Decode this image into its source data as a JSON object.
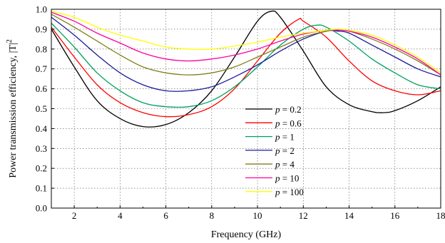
{
  "chart_data": {
    "type": "line",
    "title": "",
    "xlabel": "Frequency  (GHz)",
    "ylabel": "Power transmission efficiency, |T|",
    "ylabel_superscript": "2",
    "xlim": [
      1,
      18
    ],
    "ylim": [
      0.0,
      1.0
    ],
    "x_ticks": [
      2,
      4,
      6,
      8,
      10,
      12,
      14,
      16,
      18
    ],
    "y_ticks": [
      0.0,
      0.1,
      0.2,
      0.3,
      0.4,
      0.5,
      0.6,
      0.7,
      0.8,
      0.9,
      1.0
    ],
    "x_tick_labels": [
      "2",
      "4",
      "6",
      "8",
      "10",
      "12",
      "14",
      "16",
      "18"
    ],
    "y_tick_labels": [
      "0.0",
      "0.1",
      "0.2",
      "0.3",
      "0.4",
      "0.5",
      "0.6",
      "0.7",
      "0.8",
      "0.9",
      "1.0"
    ],
    "grid": true,
    "legend_position": "center-right",
    "legend_prefix": "p",
    "series": [
      {
        "name": "= 0.2",
        "color": "#000000",
        "x": [
          1,
          2,
          3,
          4,
          5,
          6,
          7,
          8,
          9,
          10,
          10.6,
          11,
          12,
          13,
          14,
          15,
          15.5,
          16,
          17,
          18
        ],
        "y": [
          0.9,
          0.71,
          0.54,
          0.45,
          0.41,
          0.42,
          0.48,
          0.59,
          0.76,
          0.94,
          0.99,
          0.96,
          0.79,
          0.61,
          0.52,
          0.485,
          0.48,
          0.49,
          0.54,
          0.61
        ]
      },
      {
        "name": "= 0.6",
        "color": "#ff0000",
        "x": [
          1,
          2,
          3,
          4,
          5,
          6,
          7,
          8,
          9,
          10,
          11,
          11.8,
          12,
          13,
          14,
          15,
          16,
          17,
          18
        ],
        "y": [
          0.91,
          0.76,
          0.62,
          0.53,
          0.48,
          0.46,
          0.47,
          0.51,
          0.6,
          0.74,
          0.88,
          0.95,
          0.94,
          0.86,
          0.74,
          0.64,
          0.59,
          0.57,
          0.59
        ]
      },
      {
        "name": "= 1",
        "color": "#00a060",
        "x": [
          1,
          2,
          3,
          4,
          5,
          6,
          7,
          8,
          9,
          10,
          11,
          12,
          12.6,
          13,
          14,
          15,
          16,
          17,
          18
        ],
        "y": [
          0.93,
          0.81,
          0.68,
          0.59,
          0.53,
          0.51,
          0.51,
          0.54,
          0.61,
          0.71,
          0.82,
          0.9,
          0.92,
          0.91,
          0.84,
          0.75,
          0.68,
          0.62,
          0.6
        ]
      },
      {
        "name": "= 2",
        "color": "#1c1c9c",
        "x": [
          1,
          2,
          3,
          4,
          5,
          6,
          7,
          8,
          9,
          10,
          11,
          12,
          13,
          13.5,
          14,
          15,
          16,
          17,
          18
        ],
        "y": [
          0.96,
          0.87,
          0.77,
          0.68,
          0.62,
          0.59,
          0.59,
          0.61,
          0.66,
          0.72,
          0.79,
          0.85,
          0.89,
          0.89,
          0.88,
          0.82,
          0.76,
          0.7,
          0.66
        ]
      },
      {
        "name": "= 4",
        "color": "#7f7f1a",
        "x": [
          1,
          2,
          3,
          4,
          5,
          6,
          7,
          8,
          9,
          10,
          11,
          12,
          13,
          13.5,
          14,
          15,
          16,
          17,
          18
        ],
        "y": [
          0.975,
          0.91,
          0.84,
          0.77,
          0.71,
          0.68,
          0.67,
          0.68,
          0.71,
          0.76,
          0.81,
          0.86,
          0.89,
          0.895,
          0.89,
          0.85,
          0.8,
          0.74,
          0.67
        ]
      },
      {
        "name": "= 10",
        "color": "#ff00a0",
        "x": [
          1,
          2,
          3,
          4,
          5,
          6,
          7,
          8,
          9,
          10,
          11,
          12,
          13,
          13.5,
          14,
          15,
          16,
          17,
          18
        ],
        "y": [
          0.985,
          0.94,
          0.88,
          0.83,
          0.78,
          0.75,
          0.74,
          0.75,
          0.77,
          0.8,
          0.84,
          0.875,
          0.895,
          0.895,
          0.89,
          0.86,
          0.81,
          0.75,
          0.67
        ]
      },
      {
        "name": "= 100",
        "color": "#ffff00",
        "x": [
          1,
          2,
          3,
          4,
          5,
          6,
          7,
          8,
          9,
          10,
          11,
          12,
          13,
          13.5,
          14,
          15,
          16,
          17,
          18
        ],
        "y": [
          0.99,
          0.96,
          0.91,
          0.87,
          0.84,
          0.81,
          0.8,
          0.8,
          0.815,
          0.835,
          0.86,
          0.88,
          0.895,
          0.9,
          0.895,
          0.87,
          0.82,
          0.76,
          0.68
        ]
      }
    ]
  }
}
